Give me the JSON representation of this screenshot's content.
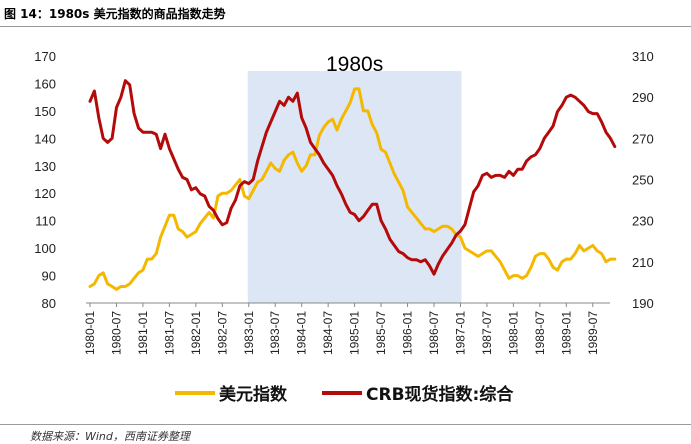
{
  "figure": {
    "title": "图 14：1980s 美元指数的商品指数走势",
    "source": "数据来源：Wind，西南证券整理"
  },
  "chart_data": {
    "type": "line",
    "title": "",
    "annotation": "1980s",
    "highlight_range": [
      "1983-01",
      "1987-01"
    ],
    "highlight_color": "#dde6f5",
    "x_tick_labels": [
      "1980-01",
      "1980-07",
      "1981-01",
      "1981-07",
      "1982-01",
      "1982-07",
      "1983-01",
      "1983-07",
      "1984-01",
      "1984-07",
      "1985-01",
      "1985-07",
      "1986-01",
      "1986-07",
      "1987-01",
      "1987-07",
      "1988-01",
      "1988-07",
      "1989-01",
      "1989-07"
    ],
    "y_left": {
      "min": 80,
      "max": 170,
      "step": 10,
      "ticks": [
        "80",
        "90",
        "100",
        "110",
        "120",
        "130",
        "140",
        "150",
        "160",
        "170"
      ]
    },
    "y_right": {
      "min": 190,
      "max": 310,
      "step": 20,
      "ticks": [
        "190",
        "210",
        "230",
        "250",
        "270",
        "290",
        "310"
      ]
    },
    "grid": false,
    "legend_position": "bottom",
    "series": [
      {
        "name": "美元指数",
        "axis": "left",
        "color": "#f5b800",
        "x": [
          "1980-01",
          "1980-02",
          "1980-03",
          "1980-04",
          "1980-05",
          "1980-06",
          "1980-07",
          "1980-08",
          "1980-09",
          "1980-10",
          "1980-11",
          "1980-12",
          "1981-01",
          "1981-02",
          "1981-03",
          "1981-04",
          "1981-05",
          "1981-06",
          "1981-07",
          "1981-08",
          "1981-09",
          "1981-10",
          "1981-11",
          "1981-12",
          "1982-01",
          "1982-02",
          "1982-03",
          "1982-04",
          "1982-05",
          "1982-06",
          "1982-07",
          "1982-08",
          "1982-09",
          "1982-10",
          "1982-11",
          "1982-12",
          "1983-01",
          "1983-02",
          "1983-03",
          "1983-04",
          "1983-05",
          "1983-06",
          "1983-07",
          "1983-08",
          "1983-09",
          "1983-10",
          "1983-11",
          "1983-12",
          "1984-01",
          "1984-02",
          "1984-03",
          "1984-04",
          "1984-05",
          "1984-06",
          "1984-07",
          "1984-08",
          "1984-09",
          "1984-10",
          "1984-11",
          "1984-12",
          "1985-01",
          "1985-02",
          "1985-03",
          "1985-04",
          "1985-05",
          "1985-06",
          "1985-07",
          "1985-08",
          "1985-09",
          "1985-10",
          "1985-11",
          "1985-12",
          "1986-01",
          "1986-02",
          "1986-03",
          "1986-04",
          "1986-05",
          "1986-06",
          "1986-07",
          "1986-08",
          "1986-09",
          "1986-10",
          "1986-11",
          "1986-12",
          "1987-01",
          "1987-02",
          "1987-03",
          "1987-04",
          "1987-05",
          "1987-06",
          "1987-07",
          "1987-08",
          "1987-09",
          "1987-10",
          "1987-11",
          "1987-12",
          "1988-01",
          "1988-02",
          "1988-03",
          "1988-04",
          "1988-05",
          "1988-06",
          "1988-07",
          "1988-08",
          "1988-09",
          "1988-10",
          "1988-11",
          "1988-12",
          "1989-01",
          "1989-02",
          "1989-03",
          "1989-04",
          "1989-05",
          "1989-06",
          "1989-07",
          "1989-08",
          "1989-09",
          "1989-10",
          "1989-11",
          "1989-12"
        ],
        "values": [
          86,
          87,
          90,
          91,
          87,
          86,
          85,
          86,
          86,
          87,
          89,
          91,
          92,
          96,
          96,
          98,
          104,
          108,
          112,
          112,
          107,
          106,
          104,
          105,
          106,
          109,
          111,
          113,
          111,
          119,
          120,
          120,
          121,
          123,
          125,
          119,
          118,
          121,
          124,
          125,
          128,
          131,
          129,
          128,
          132,
          134,
          135,
          131,
          128,
          130,
          134,
          134,
          141,
          144,
          146,
          147,
          143,
          147,
          150,
          153,
          158,
          158,
          150,
          150,
          145,
          142,
          136,
          135,
          131,
          127,
          124,
          121,
          115,
          113,
          111,
          109,
          107,
          107,
          106,
          107,
          108,
          108,
          107,
          105,
          104,
          100,
          99,
          98,
          97,
          98,
          99,
          99,
          97,
          95,
          92,
          89,
          90,
          90,
          89,
          90,
          93,
          97,
          98,
          98,
          96,
          93,
          92,
          95,
          96,
          96,
          98,
          101,
          99,
          100,
          101,
          99,
          98,
          95,
          96,
          96
        ]
      },
      {
        "name": "CRB现货指数:综合",
        "axis": "right",
        "color": "#b40a0a",
        "x": [
          "1980-01",
          "1980-02",
          "1980-03",
          "1980-04",
          "1980-05",
          "1980-06",
          "1980-07",
          "1980-08",
          "1980-09",
          "1980-10",
          "1980-11",
          "1980-12",
          "1981-01",
          "1981-02",
          "1981-03",
          "1981-04",
          "1981-05",
          "1981-06",
          "1981-07",
          "1981-08",
          "1981-09",
          "1981-10",
          "1981-11",
          "1981-12",
          "1982-01",
          "1982-02",
          "1982-03",
          "1982-04",
          "1982-05",
          "1982-06",
          "1982-07",
          "1982-08",
          "1982-09",
          "1982-10",
          "1982-11",
          "1982-12",
          "1983-01",
          "1983-02",
          "1983-03",
          "1983-04",
          "1983-05",
          "1983-06",
          "1983-07",
          "1983-08",
          "1983-09",
          "1983-10",
          "1983-11",
          "1983-12",
          "1984-01",
          "1984-02",
          "1984-03",
          "1984-04",
          "1984-05",
          "1984-06",
          "1984-07",
          "1984-08",
          "1984-09",
          "1984-10",
          "1984-11",
          "1984-12",
          "1985-01",
          "1985-02",
          "1985-03",
          "1985-04",
          "1985-05",
          "1985-06",
          "1985-07",
          "1985-08",
          "1985-09",
          "1985-10",
          "1985-11",
          "1985-12",
          "1986-01",
          "1986-02",
          "1986-03",
          "1986-04",
          "1986-05",
          "1986-06",
          "1986-07",
          "1986-08",
          "1986-09",
          "1986-10",
          "1986-11",
          "1986-12",
          "1987-01",
          "1987-02",
          "1987-03",
          "1987-04",
          "1987-05",
          "1987-06",
          "1987-07",
          "1987-08",
          "1987-09",
          "1987-10",
          "1987-11",
          "1987-12",
          "1988-01",
          "1988-02",
          "1988-03",
          "1988-04",
          "1988-05",
          "1988-06",
          "1988-07",
          "1988-08",
          "1988-09",
          "1988-10",
          "1988-11",
          "1988-12",
          "1989-01",
          "1989-02",
          "1989-03",
          "1989-04",
          "1989-05",
          "1989-06",
          "1989-07",
          "1989-08",
          "1989-09",
          "1989-10",
          "1989-11",
          "1989-12"
        ],
        "values": [
          288,
          293,
          280,
          270,
          268,
          270,
          285,
          290,
          298,
          296,
          282,
          275,
          273,
          273,
          273,
          272,
          265,
          272,
          265,
          260,
          255,
          251,
          250,
          245,
          246,
          243,
          242,
          237,
          235,
          231,
          228,
          229,
          236,
          240,
          247,
          249,
          248,
          250,
          259,
          266,
          273,
          278,
          283,
          288,
          286,
          290,
          288,
          292,
          280,
          275,
          268,
          265,
          262,
          258,
          255,
          252,
          247,
          243,
          238,
          234,
          233,
          230,
          232,
          235,
          238,
          238,
          230,
          226,
          221,
          218,
          215,
          214,
          212,
          211,
          211,
          210,
          211,
          208,
          204,
          209,
          213,
          216,
          219,
          223,
          225,
          228,
          236,
          244,
          247,
          252,
          253,
          251,
          252,
          252,
          251,
          254,
          252,
          255,
          255,
          259,
          261,
          262,
          265,
          270,
          273,
          276,
          283,
          286,
          290,
          291,
          290,
          288,
          286,
          283,
          282,
          282,
          278,
          273,
          270,
          266
        ]
      }
    ]
  }
}
